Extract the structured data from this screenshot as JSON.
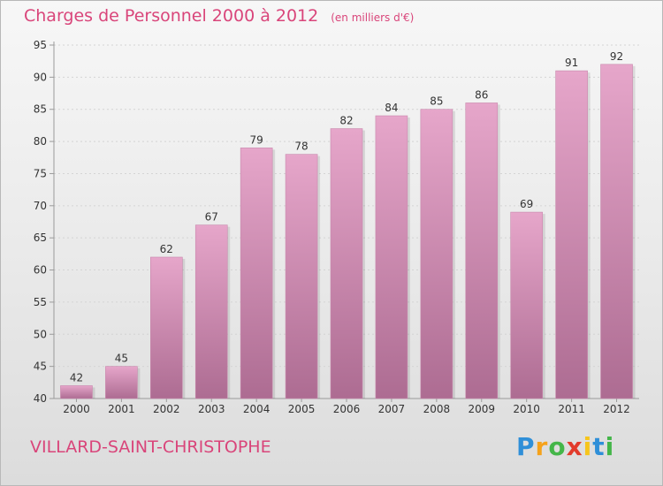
{
  "header": {
    "title": "Charges de Personnel 2000 à 2012",
    "subtitle": "(en milliers d'€)"
  },
  "footer": {
    "city": "VILLARD-SAINT-CHRISTOPHE",
    "logo_text": "Proxiti"
  },
  "colors": {
    "accent": "#d9457a",
    "bar_top": "#e6a6ca",
    "bar_bottom": "#ad6c92",
    "bar_edge": "#c988ad",
    "axis": "#9a9a9a",
    "grid": "#d4d4d4",
    "text": "#333333"
  },
  "chart_data": {
    "type": "bar",
    "title": "Charges de Personnel 2000 à 2012",
    "subtitle": "(en milliers d'€)",
    "categories": [
      "2000",
      "2001",
      "2002",
      "2003",
      "2004",
      "2005",
      "2006",
      "2007",
      "2008",
      "2009",
      "2010",
      "2011",
      "2012"
    ],
    "values": [
      42,
      45,
      62,
      67,
      79,
      78,
      82,
      84,
      85,
      86,
      69,
      91,
      92
    ],
    "ylim": [
      40,
      95
    ],
    "yticks": [
      40,
      45,
      50,
      55,
      60,
      65,
      70,
      75,
      80,
      85,
      90,
      95
    ],
    "grid": true,
    "legend": "none"
  }
}
